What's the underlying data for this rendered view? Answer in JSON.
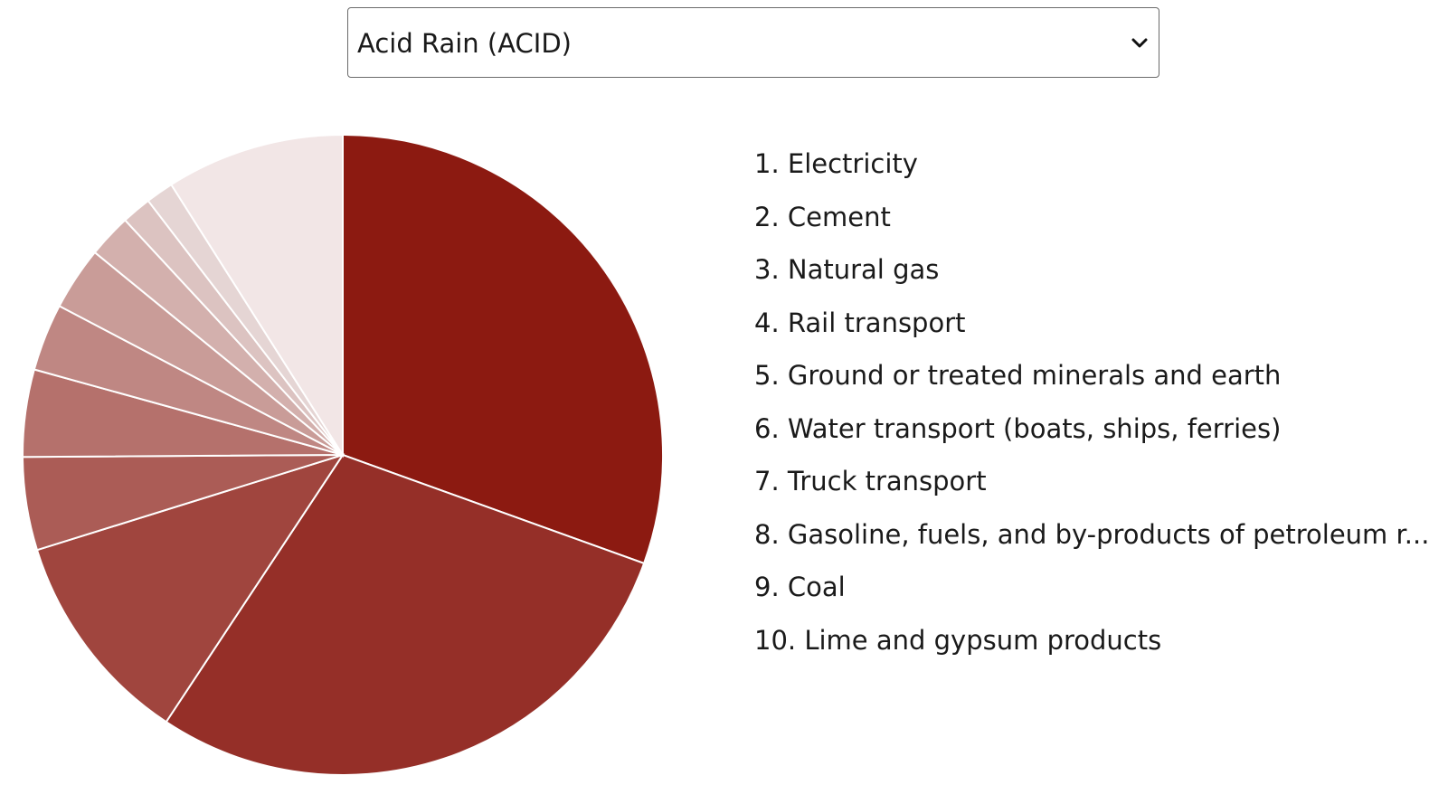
{
  "selector": {
    "selected_label": "Acid Rain (ACID)",
    "icon": "chevron-down-icon"
  },
  "chart_data": {
    "type": "pie",
    "categories": [
      "Electricity",
      "Cement",
      "Natural gas",
      "Rail transport",
      "Ground or treated minerals and earth",
      "Water transport (boats, ships, ferries)",
      "Truck transport",
      "Gasoline, fuels, and by-products of petroleum r...",
      "Coal",
      "Lime and gypsum products",
      ""
    ],
    "values": [
      30.5,
      28.8,
      10.9,
      4.7,
      4.4,
      3.4,
      3.2,
      2.2,
      1.5,
      1.4,
      9.0
    ],
    "colors": [
      "#8c1a11",
      "#952f28",
      "#a0453e",
      "#ab5c56",
      "#b5716c",
      "#bf8783",
      "#c99c98",
      "#d3b0ad",
      "#dcc3c1",
      "#e5d5d4",
      "#f2e6e6"
    ],
    "legend": [
      "1. Electricity",
      "2. Cement",
      "3. Natural gas",
      "4. Rail transport",
      "5. Ground or treated minerals and earth",
      "6. Water transport (boats, ships, ferries)",
      "7. Truck transport",
      "8. Gasoline, fuels, and by-products of petroleum r...",
      "9. Coal",
      "10. Lime and gypsum products"
    ],
    "legend_placement": "right"
  }
}
